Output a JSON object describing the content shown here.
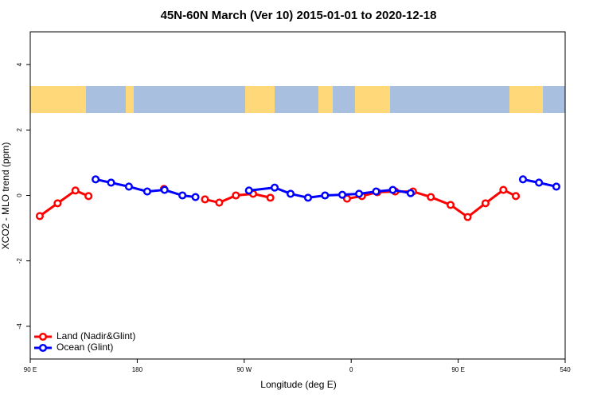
{
  "chart_data": {
    "type": "line",
    "title": "45N-60N March (Ver 10)   2015-01-01 to 2020-12-18",
    "x_label": "Longitude (deg E)",
    "y_label": "XCO2 - MLO trend (ppm)",
    "xlim": [
      90,
      540
    ],
    "ylim": [
      -5,
      5
    ],
    "xticks": [
      {
        "value": 90,
        "label": "90 E"
      },
      180,
      {
        "value": 270,
        "label": "90 W"
      },
      {
        "value": 360,
        "label": "0"
      },
      {
        "value": 450,
        "label": "90 E"
      },
      540
    ],
    "yticks": [
      -4,
      -2,
      0,
      2,
      4
    ],
    "legend": "bottom-left",
    "series": [
      {
        "name": "Land (Nadir&Glint)",
        "color": "#ff0000",
        "x": [
          98,
          113,
          128,
          139,
          null,
          202.5,
          null,
          237,
          249,
          263,
          277.5,
          292,
          null,
          356.5,
          369,
          382,
          397,
          412,
          427,
          443.6,
          458,
          473,
          488,
          498.5
        ],
        "values": [
          -0.63,
          -0.24,
          0.15,
          -0.02,
          null,
          0.2,
          null,
          -0.12,
          -0.22,
          0,
          0.05,
          -0.07,
          null,
          -0.1,
          -0.02,
          0.1,
          0.12,
          0.12,
          -0.05,
          -0.29,
          -0.66,
          -0.24,
          0.17,
          -0.02
        ]
      },
      {
        "name": "Ocean (Glint)",
        "color": "#0000ff",
        "x": [
          145,
          158,
          173,
          188.4,
          203,
          218,
          229,
          null,
          274,
          295.6,
          309,
          323.7,
          338,
          352.5,
          366.6,
          381,
          395,
          410,
          null,
          504.5,
          518,
          532.6
        ],
        "values": [
          0.49,
          0.39,
          0.27,
          0.12,
          0.17,
          0,
          -0.05,
          null,
          0.15,
          0.24,
          0.05,
          -0.07,
          0,
          0.02,
          0.05,
          0.12,
          0.17,
          0.07,
          null,
          0.49,
          0.39,
          0.27
        ]
      }
    ]
  }
}
